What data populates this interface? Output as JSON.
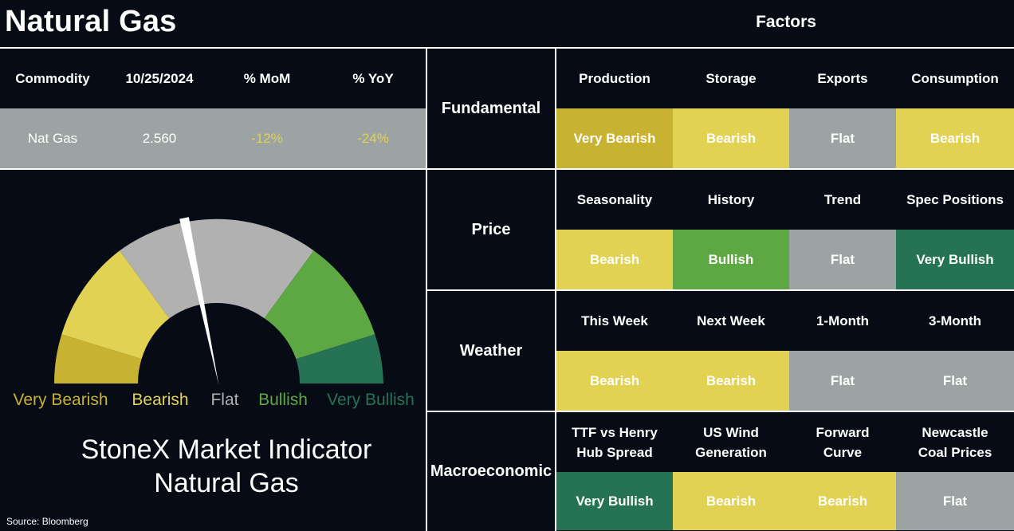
{
  "header": {
    "title": "Natural Gas",
    "factors_title": "Factors"
  },
  "commodity_table": {
    "columns": [
      "Commodity",
      "10/25/2024",
      "% MoM",
      "% YoY"
    ],
    "row": {
      "commodity": "Nat Gas",
      "price": "2.560",
      "mom": "-12%",
      "yoy": "-24%"
    }
  },
  "gauge": {
    "labels": [
      "Very Bearish",
      "Bearish",
      "Flat",
      "Bullish",
      "Very Bullish"
    ],
    "colors": {
      "very_bearish": "#c8b232",
      "bearish": "#e1d253",
      "flat": "#b1b1b1",
      "bullish": "#5ea843",
      "very_bullish": "#257254"
    },
    "label_colors": [
      "#c8b232",
      "#e1d253",
      "#b1b1b1",
      "#5ea843",
      "#257254"
    ],
    "needle_value": 0.435
  },
  "indicator": {
    "line1": "StoneX Market Indicator",
    "line2": "Natural Gas"
  },
  "source": "Source: Bloomberg",
  "factor_groups": [
    {
      "name": "Fundamental",
      "headers": [
        "Production",
        "Storage",
        "Exports",
        "Consumption"
      ],
      "values": [
        "Very Bearish",
        "Bearish",
        "Flat",
        "Bearish"
      ]
    },
    {
      "name": "Price",
      "headers": [
        "Seasonality",
        "History",
        "Trend",
        "Spec Positions"
      ],
      "values": [
        "Bearish",
        "Bullish",
        "Flat",
        "Very Bullish"
      ]
    },
    {
      "name": "Weather",
      "headers": [
        "This Week",
        "Next Week",
        "1-Month",
        "3-Month"
      ],
      "values": [
        "Bearish",
        "Bearish",
        "Flat",
        "Flat"
      ]
    },
    {
      "name": "Macroeconomic",
      "headers": [
        "TTF vs Henry Hub Spread",
        "US Wind Generation",
        "Forward Curve",
        "Newcastle Coal Prices"
      ],
      "values": [
        "Very Bullish",
        "Bearish",
        "Bearish",
        "Flat"
      ]
    }
  ],
  "status_colors": {
    "Very Bearish": "#c8b232",
    "Bearish": "#e1d253",
    "Flat": "#9ba3a3",
    "Bullish": "#5ea843",
    "Very Bullish": "#257254"
  },
  "percent_color": "#e1d253"
}
